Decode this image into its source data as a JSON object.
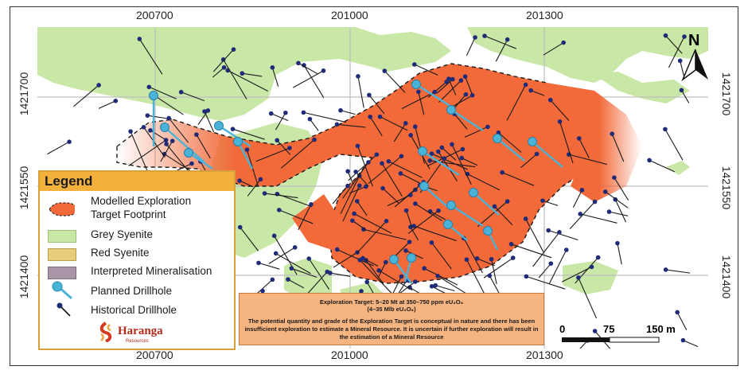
{
  "coordinates": {
    "easting_top": [
      "200700",
      "201000",
      "201300"
    ],
    "easting_bottom": [
      "200700",
      "201000",
      "201300"
    ],
    "northing_left": [
      "1421700",
      "1421550",
      "1421400"
    ],
    "northing_right": [
      "1421700",
      "1421550",
      "1421400"
    ]
  },
  "north_arrow": {
    "label": "N",
    "icon": "north-arrow-icon"
  },
  "legend": {
    "title": "Legend",
    "items": [
      {
        "label": "Modelled Exploration\nTarget Footprint",
        "line1": "Modelled Exploration",
        "line2": "Target Footprint",
        "color": "#f2693a"
      },
      {
        "label": "Grey Syenite",
        "color": "#c9e7a6"
      },
      {
        "label": "Red Syenite",
        "color": "#e5cd7a"
      },
      {
        "label": "Interpreted Mineralisation",
        "color": "#a895a8"
      },
      {
        "label": "Planned Drillhole",
        "color": "#4ab3d8"
      },
      {
        "label": "Historical Drillhole",
        "color": "#1f2a78"
      }
    ],
    "logo": {
      "name": "Haranga",
      "subtitle": "Resources"
    }
  },
  "note": {
    "line1": "Exploration Target: 5–20 Mt at 350–750 ppm eU₃O₈",
    "line2": "(4–35 Mlb eU₃O₈)",
    "line3": "The potential quantity and grade of the Exploration Target is conceptual in nature and there has been insufficient exploration to estimate a Mineral Resource. It is uncertain if further exploration will result in the estimation of a Mineral Resource"
  },
  "scale_bar": {
    "labels": [
      "0",
      "75",
      "150 m"
    ]
  },
  "colors": {
    "grey_syenite": "#c9e7a6",
    "target": "#f2693a",
    "planned": "#4ab3d8",
    "historical": "#1f2a78",
    "legend_header": "#f2b03c"
  }
}
